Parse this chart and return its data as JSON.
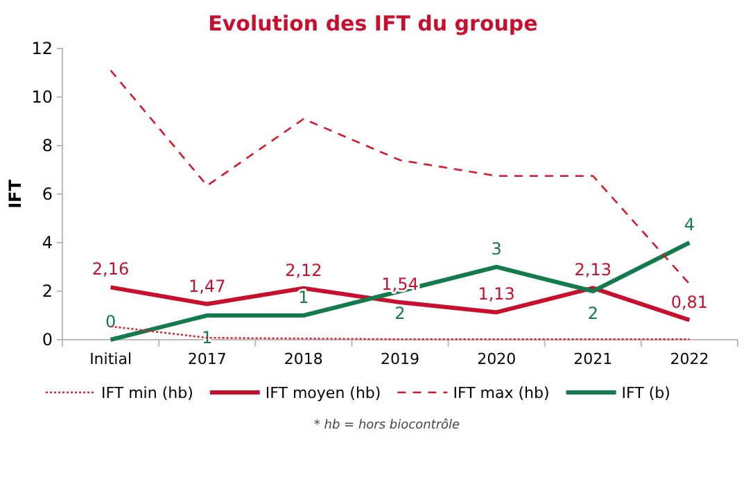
{
  "chart_data": {
    "type": "line",
    "title": "Evolution des IFT du groupe",
    "ylabel": "IFT",
    "categories": [
      "Initial",
      "2017",
      "2018",
      "2019",
      "2020",
      "2021",
      "2022"
    ],
    "ylim": [
      0,
      12
    ],
    "yticks": [
      0,
      2,
      4,
      6,
      8,
      10,
      12
    ],
    "grid": false,
    "legend": "bottom",
    "marker": "none",
    "series": [
      {
        "name": "IFT min (hb)",
        "color": "#e0202c",
        "line_style": "dotted",
        "values": [
          0.55,
          0.08,
          0.05,
          0.02,
          0.02,
          0.02,
          0.02
        ]
      },
      {
        "name": "IFT moyen (hb)",
        "color": "#c8102e",
        "line_style": "solid",
        "values": [
          2.16,
          1.47,
          2.12,
          1.54,
          1.13,
          2.13,
          0.81
        ],
        "value_labels": [
          "2,16",
          "1,47",
          "2,12",
          "1,54",
          "1,13",
          "2,13",
          "0,81"
        ]
      },
      {
        "name": "IFT max (hb)",
        "color": "#d7182a",
        "line_style": "dashed",
        "values": [
          11.1,
          6.35,
          9.1,
          7.4,
          6.75,
          6.75,
          2.3
        ]
      },
      {
        "name": "IFT (b)",
        "color": "#137a4b",
        "line_style": "solid",
        "values": [
          0,
          1,
          1,
          2,
          3,
          2,
          4
        ],
        "value_labels": [
          "0",
          "1",
          "1",
          "2",
          "3",
          "2",
          "4"
        ]
      }
    ],
    "annotations": [
      "* hb = hors biocontrôle"
    ]
  }
}
